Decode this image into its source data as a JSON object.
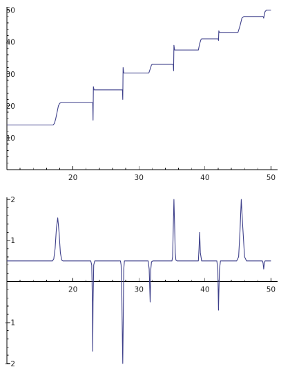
{
  "chart_data": [
    {
      "type": "line",
      "title": "",
      "xlabel": "",
      "ylabel": "",
      "xlim": [
        10,
        51
      ],
      "ylim": [
        0,
        51
      ],
      "x_ticks": [
        20,
        30,
        40,
        50
      ],
      "y_ticks": [
        10,
        20,
        30,
        40,
        50
      ],
      "x_tick_labels": [
        "20",
        "30",
        "40",
        "50"
      ],
      "y_tick_labels": [
        "10",
        "20",
        "30",
        "40",
        "50"
      ],
      "grid": false,
      "legend": "none",
      "series_color": "#3d3f8a",
      "series": [
        {
          "x": [
            10,
            17.0,
            17.2,
            17.4,
            17.6,
            17.8,
            18.0,
            18.2,
            23.0,
            23.05,
            23.1,
            23.2,
            23.3,
            27.5,
            27.55,
            27.6,
            27.7,
            27.8,
            31.5,
            31.7,
            31.9,
            32.0,
            35.2,
            35.25,
            35.3,
            35.4,
            35.5,
            39.0,
            39.2,
            39.4,
            39.5,
            42.0,
            42.05,
            42.1,
            42.2,
            42.3,
            45.0,
            45.3,
            45.6,
            45.9,
            48.8,
            48.9,
            49.1,
            49.3,
            50
          ],
          "y": [
            14,
            14,
            14.5,
            16,
            18,
            20,
            20.8,
            21,
            21,
            15.5,
            26,
            25,
            25,
            25,
            22,
            32,
            30.3,
            30.3,
            30.3,
            31.5,
            32.8,
            33,
            33,
            31,
            39,
            37.5,
            37.5,
            37.5,
            39.5,
            40.8,
            41,
            41,
            40.5,
            43.5,
            43,
            43,
            43,
            45,
            47.5,
            48,
            48,
            47.5,
            49.5,
            50,
            50
          ]
        }
      ]
    },
    {
      "type": "line",
      "title": "",
      "xlabel": "",
      "ylabel": "",
      "xlim": [
        10,
        51
      ],
      "ylim": [
        -2,
        2.05
      ],
      "x_ticks": [
        20,
        30,
        40,
        50
      ],
      "y_ticks": [
        -2,
        -1,
        1,
        2
      ],
      "x_tick_labels": [
        "20",
        "30",
        "40",
        "50"
      ],
      "y_tick_labels": [
        "−2",
        "−1",
        "1",
        "2"
      ],
      "grid": false,
      "legend": "none",
      "series_color": "#3d3f8a",
      "series": [
        {
          "x": [
            10,
            16.9,
            17.1,
            17.3,
            17.5,
            17.7,
            17.9,
            18.1,
            18.3,
            18.5,
            22.7,
            22.85,
            22.95,
            23.0,
            23.05,
            23.15,
            23.3,
            27.2,
            27.3,
            27.4,
            27.5,
            27.55,
            27.6,
            27.7,
            27.8,
            31.4,
            31.55,
            31.7,
            31.8,
            31.9,
            32.1,
            35.0,
            35.1,
            35.2,
            35.3,
            35.4,
            35.5,
            35.6,
            35.8,
            39.0,
            39.1,
            39.2,
            39.3,
            39.5,
            41.8,
            41.95,
            42.05,
            42.1,
            42.2,
            42.35,
            44.8,
            45.1,
            45.3,
            45.5,
            45.7,
            46.0,
            46.3,
            48.7,
            48.8,
            48.9,
            49.0,
            49.1,
            50
          ],
          "y": [
            0.5,
            0.5,
            0.55,
            0.8,
            1.3,
            1.55,
            1.2,
            0.7,
            0.52,
            0.5,
            0.5,
            0.4,
            -0.5,
            -1.7,
            -0.5,
            0.4,
            0.5,
            0.5,
            0.4,
            -0.2,
            -1.5,
            -2.0,
            -1.3,
            0.3,
            0.5,
            0.5,
            0.3,
            -0.5,
            0.3,
            0.48,
            0.5,
            0.5,
            0.6,
            1.3,
            2.0,
            1.4,
            0.7,
            0.52,
            0.5,
            0.5,
            0.8,
            1.2,
            0.7,
            0.5,
            0.5,
            0.3,
            -0.7,
            -0.3,
            0.3,
            0.5,
            0.5,
            0.6,
            1.2,
            2.0,
            1.4,
            0.6,
            0.5,
            0.5,
            0.45,
            0.3,
            0.45,
            0.5,
            0.5
          ]
        }
      ]
    }
  ]
}
